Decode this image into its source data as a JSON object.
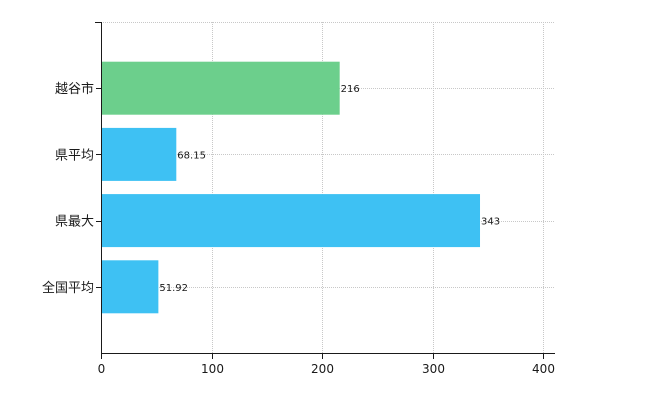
{
  "chart_data": {
    "type": "bar",
    "orientation": "horizontal",
    "categories": [
      "越谷市",
      "県平均",
      "県最大",
      "全国平均"
    ],
    "values": [
      216,
      68.15,
      343,
      51.92
    ],
    "value_labels": [
      "216",
      "68.15",
      "343",
      "51.92"
    ],
    "bar_colors": [
      "#6ccf8c",
      "#3ec1f3",
      "#3ec1f3",
      "#3ec1f3"
    ],
    "xlim": [
      0,
      400
    ],
    "xticks": [
      0,
      100,
      200,
      300,
      400
    ],
    "grid": true,
    "title": "",
    "xlabel": "",
    "ylabel": ""
  }
}
